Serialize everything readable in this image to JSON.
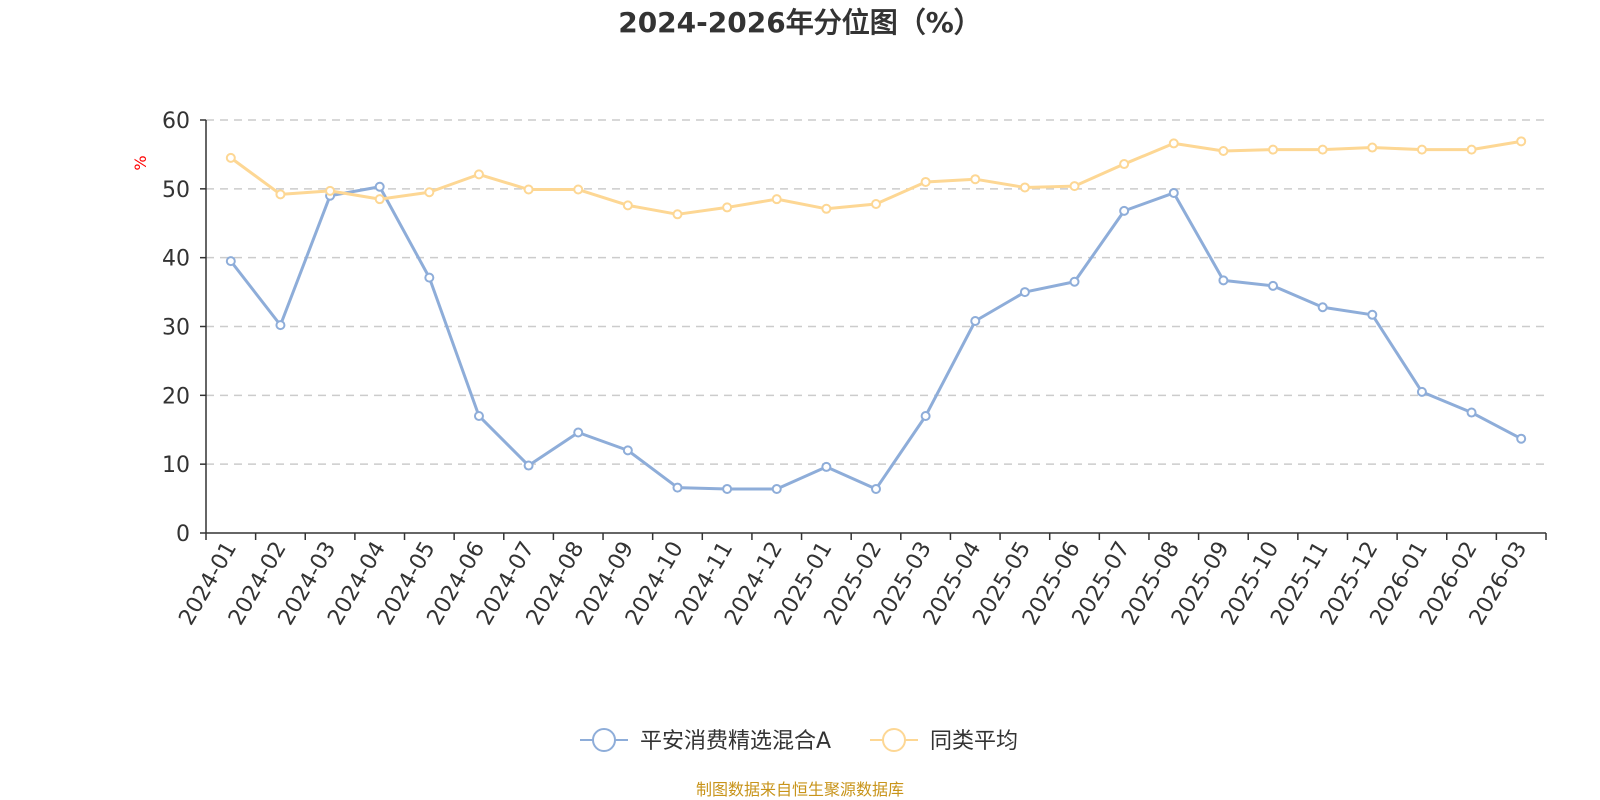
{
  "colors": {
    "series_a": "#8eadd9",
    "series_b": "#fdd794",
    "unit": "#ff0000",
    "source": "#c8941a",
    "grid": "#cccccc",
    "axis": "#333333"
  },
  "chart_data": {
    "type": "line",
    "title": "2024-2026年分位图（%）",
    "ylabel": "%",
    "xlabel": "",
    "ylim": [
      0,
      60
    ],
    "yticks": [
      0,
      10,
      20,
      30,
      40,
      50,
      60
    ],
    "grid": true,
    "legend_position": "bottom",
    "categories": [
      "2024-01",
      "2024-02",
      "2024-03",
      "2024-04",
      "2024-05",
      "2024-06",
      "2024-07",
      "2024-08",
      "2024-09",
      "2024-10",
      "2024-11",
      "2024-12",
      "2025-01",
      "2025-02",
      "2025-03",
      "2025-04",
      "2025-05",
      "2025-06",
      "2025-07",
      "2025-08",
      "2025-09",
      "2025-10",
      "2025-11",
      "2025-12",
      "2026-01",
      "2026-02",
      "2026-03"
    ],
    "series": [
      {
        "name": "平安消费精选混合A",
        "color": "#8eadd9",
        "values": [
          39.5,
          30.2,
          49.0,
          50.3,
          37.1,
          17.0,
          9.8,
          14.6,
          12.0,
          6.6,
          6.4,
          6.4,
          9.6,
          6.4,
          17.0,
          30.8,
          35.0,
          36.5,
          46.8,
          49.4,
          36.7,
          35.9,
          32.8,
          31.7,
          20.5,
          17.5,
          13.7
        ]
      },
      {
        "name": "同类平均",
        "color": "#fdd794",
        "values": [
          54.5,
          49.2,
          49.7,
          48.5,
          49.5,
          52.1,
          49.9,
          49.9,
          47.6,
          46.3,
          47.3,
          48.5,
          47.1,
          47.8,
          51.0,
          51.4,
          50.2,
          50.4,
          53.6,
          56.6,
          55.5,
          55.7,
          55.7,
          56.0,
          55.7,
          55.7,
          56.9
        ]
      }
    ]
  },
  "source": "制图数据来自恒生聚源数据库"
}
